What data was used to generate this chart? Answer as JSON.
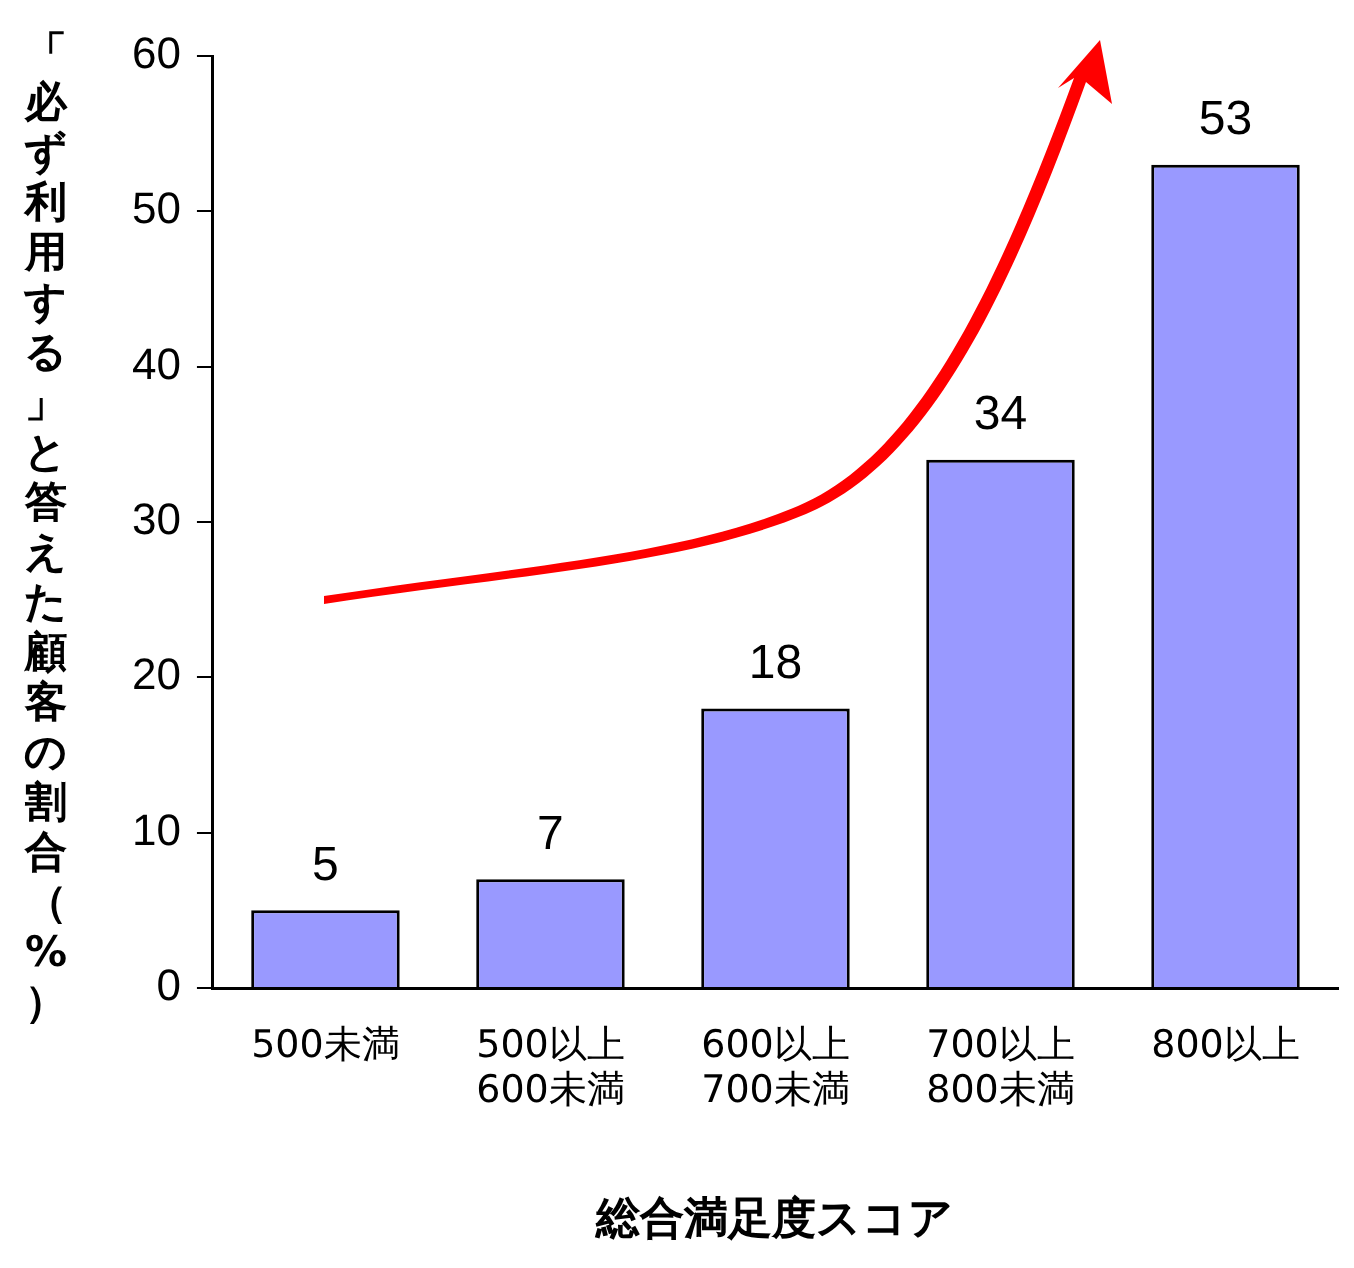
{
  "chart_data": {
    "type": "bar",
    "xlabel": "総合満足度スコア",
    "ylabel": "「必ず利用する」と答えた顧客の割合（%）",
    "categories": [
      "500未満",
      "500以上\n600未満",
      "600以上\n700未満",
      "700以上\n800未満",
      "800以上"
    ],
    "values": [
      5,
      7,
      18,
      34,
      53
    ],
    "color": "#9999ff",
    "ylim": [
      0,
      60
    ],
    "yticks": [
      0,
      10,
      20,
      30,
      40,
      50,
      60
    ],
    "grid": false,
    "legend": false,
    "data_labels": true
  }
}
